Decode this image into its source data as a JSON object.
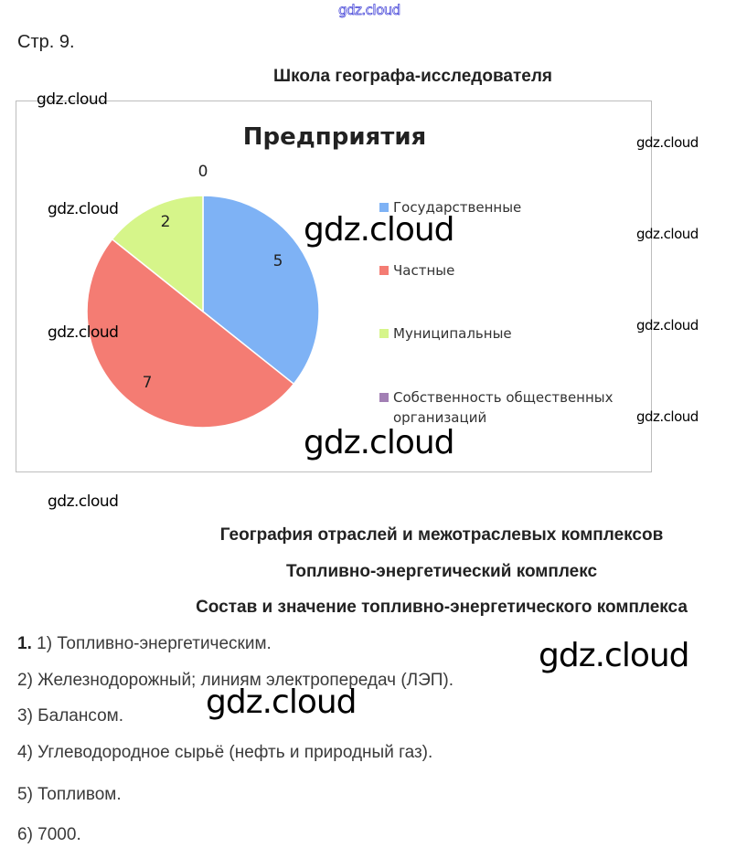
{
  "watermark": "gdz.cloud",
  "page_label": "Стр. 9.",
  "section_title": "Школа географа-исследователя",
  "chart_data": {
    "type": "pie",
    "title": "Предприятия",
    "categories": [
      "Государственные",
      "Частные",
      "Муниципальные",
      "Собственность общественных организаций"
    ],
    "values": [
      5,
      7,
      2,
      0
    ],
    "data_labels": [
      "5",
      "7",
      "2",
      "0"
    ],
    "colors": [
      "#7eb2f5",
      "#f47c73",
      "#d6f58a",
      "#a27fb4"
    ],
    "legend_placement": "right"
  },
  "headings": [
    "География отраслей и межотраслевых комплексов",
    "Топливно-энергетический комплекс",
    "Состав и значение топливно-энергетического комплекса"
  ],
  "task_number": "1.",
  "answers": [
    "1) Топливно-энергетическим.",
    "2) Железнодорожный; линиям электропередач (ЛЭП).",
    "3) Балансом.",
    "4) Углеводородное сырьё (нефть и природный газ).",
    "5) Топливом.",
    "6) 7000."
  ]
}
